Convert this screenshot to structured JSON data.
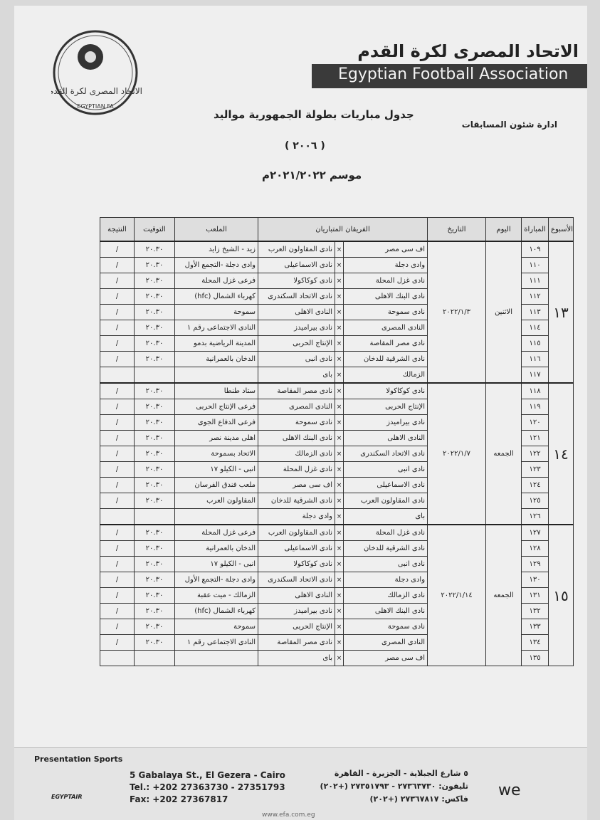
{
  "header": {
    "org_ar": "الاتحاد المصرى لكرة القدم",
    "org_en": "Egyptian Football Association",
    "logo_ar": "الاتحاد المصرى لكرة القدم",
    "logo_en": "EGYPTIAN FA",
    "department": "ادارة شئون المسابقات",
    "title": "جدول مباريات بطولة الجمهورية مواليد",
    "year": "( ٢٠٠٦ )",
    "season": "موسم ٢٠٢١/٢٠٢٢م"
  },
  "table": {
    "headers": [
      "النتيجة",
      "التوقيت",
      "الملعب",
      "الفريقان المتباريان",
      "التاريخ",
      "اليوم",
      "المباراة",
      "الأسبوع"
    ],
    "weeks": [
      {
        "week": "١٣",
        "day": "الاثنين",
        "date": "٢٠٢٢/١/٣",
        "matches": [
          {
            "no": "١٠٩",
            "team1": "اف سى مصر",
            "vs": "×",
            "team2": "نادى المقاولون العرب",
            "stadium": "زيد - الشيخ زايد",
            "time": "٢٠.٣٠",
            "result": "/"
          },
          {
            "no": "١١٠",
            "team1": "وادى دجلة",
            "vs": "×",
            "team2": "نادى الاسماعيلى",
            "stadium": "وادى دجلة -التجمع الأول",
            "time": "٢٠.٣٠",
            "result": "/"
          },
          {
            "no": "١١١",
            "team1": "نادى غزل المحلة",
            "vs": "×",
            "team2": "نادى كوكاكولا",
            "stadium": "فرعى غزل المحلة",
            "time": "٢٠.٣٠",
            "result": "/"
          },
          {
            "no": "١١٢",
            "team1": "نادى البنك الاهلى",
            "vs": "×",
            "team2": "نادى الاتحاد السكندرى",
            "stadium": "كهرباء الشمال (hfc)",
            "time": "٢٠.٣٠",
            "result": "/"
          },
          {
            "no": "١١٣",
            "team1": "نادى سموحة",
            "vs": "×",
            "team2": "النادى الاهلى",
            "stadium": "سموحة",
            "time": "٢٠.٣٠",
            "result": "/"
          },
          {
            "no": "١١٤",
            "team1": "النادى المصرى",
            "vs": "×",
            "team2": "نادى بيراميدز",
            "stadium": "النادى الاجتماعى رقم ١",
            "time": "٢٠.٣٠",
            "result": "/"
          },
          {
            "no": "١١٥",
            "team1": "نادى مصر المقاصة",
            "vs": "×",
            "team2": "الإنتاج الحربى",
            "stadium": "المدينة الرياضية بدمو",
            "time": "٢٠.٣٠",
            "result": "/"
          },
          {
            "no": "١١٦",
            "team1": "نادى الشرقية للدخان",
            "vs": "×",
            "team2": "نادى انبى",
            "stadium": "الدخان بالعمرانية",
            "time": "٢٠.٣٠",
            "result": "/"
          },
          {
            "no": "١١٧",
            "team1": "الزمالك",
            "vs": "×",
            "team2": "باى"
          }
        ]
      },
      {
        "week": "١٤",
        "day": "الجمعه",
        "date": "٢٠٢٢/١/٧",
        "matches": [
          {
            "no": "١١٨",
            "team1": "نادى كوكاكولا",
            "vs": "×",
            "team2": "نادى مصر المقاصة",
            "stadium": "ستاد طنطا",
            "time": "٢٠.٣٠",
            "result": "/"
          },
          {
            "no": "١١٩",
            "team1": "الإنتاج الحربى",
            "vs": "×",
            "team2": "النادى المصرى",
            "stadium": "فرعى الإنتاج الحربى",
            "time": "٢٠.٣٠",
            "result": "/"
          },
          {
            "no": "١٢٠",
            "team1": "نادى بيراميدز",
            "vs": "×",
            "team2": "نادى سموحة",
            "stadium": "فرعى الدفاع الجوى",
            "time": "٢٠.٣٠",
            "result": "/"
          },
          {
            "no": "١٢١",
            "team1": "النادى الاهلى",
            "vs": "×",
            "team2": "نادى البنك الاهلى",
            "stadium": "اهلى مدينة نصر",
            "time": "٢٠.٣٠",
            "result": "/"
          },
          {
            "no": "١٢٢",
            "team1": "نادى الاتحاد السكندرى",
            "vs": "×",
            "team2": "نادى الزمالك",
            "stadium": "الاتحاد بسموحة",
            "time": "٢٠.٣٠",
            "result": "/"
          },
          {
            "no": "١٢٣",
            "team1": "نادى انبى",
            "vs": "×",
            "team2": "نادى غزل المحلة",
            "stadium": "انبى - الكيلو ١٧",
            "time": "٢٠.٣٠",
            "result": "/"
          },
          {
            "no": "١٢٤",
            "team1": "نادى الاسماعيلى",
            "vs": "×",
            "team2": "اف سى مصر",
            "stadium": "ملعب فندق الفرسان",
            "time": "٢٠.٣٠",
            "result": "/"
          },
          {
            "no": "١٢٥",
            "team1": "نادى المقاولون العرب",
            "vs": "×",
            "team2": "نادى الشرقية للدخان",
            "stadium": "المقاولون العرب",
            "time": "٢٠.٣٠",
            "result": "/"
          },
          {
            "no": "١٢٦",
            "team1": "باى",
            "vs": "×",
            "team2": "وادى دجلة"
          }
        ]
      },
      {
        "week": "١٥",
        "day": "الجمعه",
        "date": "٢٠٢٢/١/١٤",
        "matches": [
          {
            "no": "١٢٧",
            "team1": "نادى غزل المحلة",
            "vs": "×",
            "team2": "نادى المقاولون العرب",
            "stadium": "فرعى غزل المحلة",
            "time": "٢٠.٣٠",
            "result": "/"
          },
          {
            "no": "١٢٨",
            "team1": "نادى الشرقية للدخان",
            "vs": "×",
            "team2": "نادى الاسماعيلى",
            "stadium": "الدخان بالعمرانية",
            "time": "٢٠.٣٠",
            "result": "/"
          },
          {
            "no": "١٢٩",
            "team1": "نادى انبى",
            "vs": "×",
            "team2": "نادى كوكاكولا",
            "stadium": "انبى - الكيلو ١٧",
            "time": "٢٠.٣٠",
            "result": "/"
          },
          {
            "no": "١٣٠",
            "team1": "وادى دجلة",
            "vs": "×",
            "team2": "نادى الاتحاد السكندرى",
            "stadium": "وادى دجلة -التجمع الأول",
            "time": "٢٠.٣٠",
            "result": "/"
          },
          {
            "no": "١٣١",
            "team1": "نادى الزمالك",
            "vs": "×",
            "team2": "النادى الاهلى",
            "stadium": "الزمالك - ميت عقبة",
            "time": "٢٠.٣٠",
            "result": "/"
          },
          {
            "no": "١٣٢",
            "team1": "نادى البنك الاهلى",
            "vs": "×",
            "team2": "نادى بيراميدز",
            "stadium": "كهرباء الشمال (hfc)",
            "time": "٢٠.٣٠",
            "result": "/"
          },
          {
            "no": "١٣٣",
            "team1": "نادى سموحة",
            "vs": "×",
            "team2": "الإنتاج الحربى",
            "stadium": "سموحة",
            "time": "٢٠.٣٠",
            "result": "/"
          },
          {
            "no": "١٣٤",
            "team1": "النادى المصرى",
            "vs": "×",
            "team2": "نادى مصر المقاصة",
            "stadium": "النادى الاجتماعى رقم ١",
            "time": "٢٠.٣٠",
            "result": "/"
          },
          {
            "no": "١٣٥",
            "team1": "اف سى مصر",
            "vs": "×",
            "team2": "باى"
          }
        ]
      }
    ]
  },
  "footer": {
    "sponsor": "Presentation Sports",
    "airline": "EGYPTAIR",
    "address_en": "5 Gabalaya St., El Gezera - Cairo",
    "tel_en": "Tel.: +202 27363730 - 27351793",
    "fax_en": "Fax: +202 27367817",
    "address_ar": "٥ شارع الجبلاية - الجزيرة - القاهرة",
    "tel_ar": "تليفون: ٢٧٣٦٣٧٣٠ - ٢٧٣٥١٧٩٣ (+٢٠٢)",
    "fax_ar": "فاكس: ٢٧٣٦٧٨١٧ (+٢٠٢)",
    "telecom": "we",
    "website": "www.efa.com.eg"
  }
}
